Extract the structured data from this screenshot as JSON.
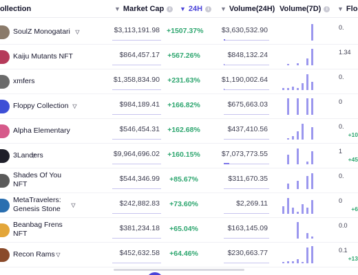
{
  "header": {
    "collection": "ollection",
    "market_cap": "Market Cap",
    "change_24h": "24H",
    "volume_24h": "Volume(24H)",
    "volume_7d": "Volume(7D)",
    "floor": "Floo",
    "sort_column": "24H",
    "sort_direction": "descending"
  },
  "colors": {
    "accent": "#4a43d9",
    "positive": "#2ea66f",
    "spark": "#9b97ee"
  },
  "rows": [
    {
      "name": "SoulZ Monogatari",
      "verified": true,
      "market_cap": "$3,113,191.98",
      "change": "+1507.37%",
      "volume": "$3,630,532.90",
      "volume_fill": 0.03,
      "spark": [
        0,
        0,
        0,
        0,
        0,
        0,
        0.92
      ],
      "floor": "0.",
      "floor_change": "",
      "avatar_color": "#8a7a6a"
    },
    {
      "name": "Kaiju Mutants NFT",
      "verified": false,
      "market_cap": "$864,457.17",
      "change": "+567.26%",
      "volume": "$848,132.24",
      "volume_fill": 0.02,
      "spark": [
        0,
        0.04,
        0,
        0.1,
        0,
        0.38,
        0.92
      ],
      "floor": "1.34",
      "floor_change": "",
      "avatar_color": "#b53a5a"
    },
    {
      "name": "xmfers",
      "verified": false,
      "market_cap": "$1,358,834.90",
      "change": "+231.63%",
      "volume": "$1,190,002.64",
      "volume_fill": 0.02,
      "spark": [
        0.12,
        0.12,
        0.2,
        0.12,
        0.4,
        0.88,
        0.45
      ],
      "floor": "0.",
      "floor_change": "",
      "avatar_color": "#6b6b6b"
    },
    {
      "name": "Floppy Collection",
      "verified": true,
      "market_cap": "$984,189.41",
      "change": "+166.82%",
      "volume": "$675,663.03",
      "volume_fill": 0.0,
      "spark": [
        0,
        0.92,
        0,
        0.92,
        0,
        0.92,
        0.92
      ],
      "floor": "0",
      "floor_change": "",
      "avatar_color": "#3d4fd6"
    },
    {
      "name": "Alpha Elementary",
      "verified": false,
      "market_cap": "$546,454.31",
      "change": "+162.68%",
      "volume": "$437,410.56",
      "volume_fill": 0.0,
      "spark": [
        0,
        0.08,
        0.2,
        0.48,
        0.88,
        0,
        0.7
      ],
      "floor": "0.",
      "floor_change": "+10",
      "avatar_color": "#d65a8a"
    },
    {
      "name": "3Landers",
      "verified": true,
      "market_cap": "$9,964,696.02",
      "change": "+160.15%",
      "volume": "$7,073,773.55",
      "volume_fill": 0.12,
      "spark": [
        0,
        0.55,
        0,
        0.88,
        0,
        0.15,
        0.72
      ],
      "floor": "1",
      "floor_change": "+45",
      "avatar_color": "#1f1f2a"
    },
    {
      "name": "Shades Of You\nNFT",
      "verified": false,
      "market_cap": "$544,346.99",
      "change": "+85.67%",
      "volume": "$311,670.35",
      "volume_fill": 0.0,
      "spark": [
        0,
        0.3,
        0,
        0.45,
        0,
        0.72,
        0.9
      ],
      "floor": "0.",
      "floor_change": "",
      "avatar_color": "#5a5a5a"
    },
    {
      "name": "MetaTravelers:\nGenesis Stone",
      "verified": true,
      "market_cap": "$242,882.83",
      "change": "+73.60%",
      "volume": "$2,269.11",
      "volume_fill": 0.0,
      "spark": [
        0.42,
        0.88,
        0.35,
        0.1,
        0.55,
        0.35,
        0.75
      ],
      "floor": "0",
      "floor_change": "+6",
      "avatar_color": "#2a6fb0"
    },
    {
      "name": "Beanbag Frens\nNFT",
      "verified": false,
      "market_cap": "$381,234.18",
      "change": "+65.04%",
      "volume": "$163,145.09",
      "volume_fill": 0.0,
      "spark": [
        0,
        0,
        0,
        0.92,
        0,
        0.3,
        0.12
      ],
      "floor": "0.0",
      "floor_change": "",
      "avatar_color": "#e3a63a"
    },
    {
      "name": "Recon Rams",
      "verified": true,
      "market_cap": "$452,632.58",
      "change": "+64.46%",
      "volume": "$230,663.77",
      "volume_fill": 0.0,
      "spark": [
        0.04,
        0.1,
        0.12,
        0.22,
        0.05,
        0.88,
        0.96
      ],
      "floor": "0.1",
      "floor_change": "+13",
      "avatar_color": "#8a4a2a"
    }
  ]
}
